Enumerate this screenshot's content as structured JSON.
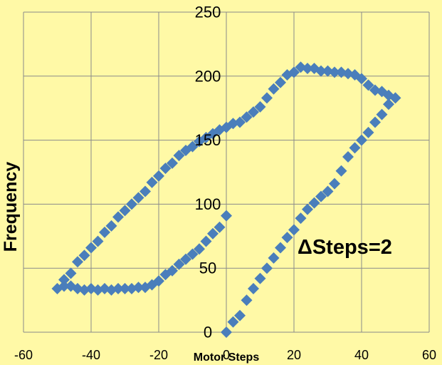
{
  "chart_data": {
    "type": "scatter",
    "title": "",
    "xlabel": "Motor Steps",
    "ylabel": "Frequency",
    "annotation": "ΔSteps=2",
    "xlim": [
      -60,
      60
    ],
    "ylim": [
      0,
      250
    ],
    "x_ticks": [
      -60,
      -40,
      -20,
      0,
      20,
      40,
      60
    ],
    "y_ticks": [
      0,
      50,
      100,
      150,
      200,
      250
    ],
    "grid": true,
    "legend": "none",
    "marker": "diamond",
    "series": [
      {
        "color": "#4A7EBB",
        "points": [
          [
            0,
            0
          ],
          [
            2,
            8
          ],
          [
            4,
            13
          ],
          [
            6,
            25
          ],
          [
            8,
            34
          ],
          [
            10,
            42
          ],
          [
            12,
            50
          ],
          [
            14,
            58
          ],
          [
            16,
            66
          ],
          [
            18,
            74
          ],
          [
            20,
            80
          ],
          [
            22,
            89
          ],
          [
            24,
            96
          ],
          [
            26,
            101
          ],
          [
            28,
            106
          ],
          [
            30,
            110
          ],
          [
            32,
            116
          ],
          [
            34,
            126
          ],
          [
            36,
            137
          ],
          [
            38,
            144
          ],
          [
            40,
            150
          ],
          [
            42,
            156
          ],
          [
            44,
            164
          ],
          [
            46,
            170
          ],
          [
            48,
            178
          ],
          [
            50,
            183
          ],
          [
            48,
            185
          ],
          [
            46,
            188
          ],
          [
            44,
            189
          ],
          [
            42,
            193
          ],
          [
            40,
            198
          ],
          [
            38,
            201
          ],
          [
            36,
            202
          ],
          [
            34,
            203
          ],
          [
            32,
            203
          ],
          [
            30,
            204
          ],
          [
            28,
            204
          ],
          [
            26,
            206
          ],
          [
            24,
            206
          ],
          [
            22,
            207
          ],
          [
            20,
            203
          ],
          [
            18,
            201
          ],
          [
            16,
            195
          ],
          [
            14,
            190
          ],
          [
            12,
            183
          ],
          [
            10,
            176
          ],
          [
            8,
            172
          ],
          [
            6,
            168
          ],
          [
            4,
            164
          ],
          [
            2,
            163
          ],
          [
            0,
            160
          ],
          [
            -2,
            158
          ],
          [
            -4,
            155
          ],
          [
            -6,
            152
          ],
          [
            -8,
            149
          ],
          [
            -10,
            145
          ],
          [
            -12,
            142
          ],
          [
            -14,
            138
          ],
          [
            -16,
            132
          ],
          [
            -18,
            128
          ],
          [
            -20,
            122
          ],
          [
            -22,
            117
          ],
          [
            -24,
            110
          ],
          [
            -26,
            105
          ],
          [
            -28,
            100
          ],
          [
            -30,
            95
          ],
          [
            -32,
            90
          ],
          [
            -34,
            83
          ],
          [
            -36,
            78
          ],
          [
            -38,
            71
          ],
          [
            -40,
            66
          ],
          [
            -42,
            60
          ],
          [
            -44,
            55
          ],
          [
            -46,
            46
          ],
          [
            -48,
            41
          ],
          [
            -50,
            34
          ],
          [
            -48,
            36
          ],
          [
            -46,
            36
          ],
          [
            -44,
            34
          ],
          [
            -42,
            33
          ],
          [
            -40,
            34
          ],
          [
            -38,
            33
          ],
          [
            -36,
            34
          ],
          [
            -34,
            33
          ],
          [
            -32,
            34
          ],
          [
            -30,
            34
          ],
          [
            -28,
            34
          ],
          [
            -26,
            35
          ],
          [
            -24,
            35
          ],
          [
            -22,
            37
          ],
          [
            -20,
            40
          ],
          [
            -18,
            45
          ],
          [
            -16,
            48
          ],
          [
            -14,
            53
          ],
          [
            -12,
            57
          ],
          [
            -10,
            61
          ],
          [
            -8,
            65
          ],
          [
            -6,
            71
          ],
          [
            -4,
            77
          ],
          [
            -2,
            82
          ],
          [
            0,
            91
          ]
        ]
      }
    ]
  }
}
